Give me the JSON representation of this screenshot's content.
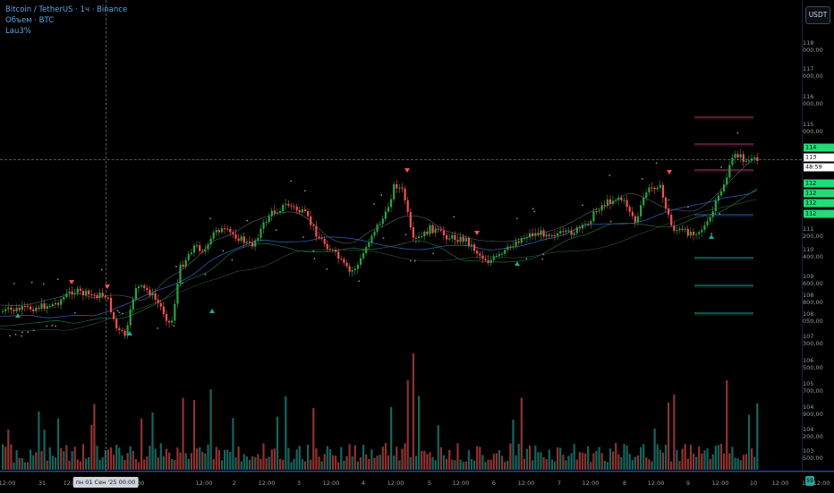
{
  "legend": {
    "symbol": "Bitcoin / TetherUS · 1ч · Binance",
    "volume": "Объем · BTC",
    "indicator": "Lau3%"
  },
  "currency_button": "USDT",
  "corner_badge": "59",
  "colors": {
    "up": "#26a69a",
    "up_candle": "#2ea043",
    "down": "#ef5350",
    "tag_green": "#22dd77",
    "level_pink": "#b03a66",
    "level_teal": "#2a9d8f",
    "ma_blue": "#2a5caa"
  },
  "price_axis": {
    "ticks": [
      "118 000,00",
      "117 000,00",
      "116 000,00",
      "115 000,00",
      "111 200,00",
      "110 400,00",
      "109 600,00",
      "108 800,00",
      "108 050,00",
      "107 300,00",
      "106 500,00",
      "105 700,00",
      "104 900,00",
      "104 200,00",
      "103 500,00"
    ],
    "tags": [
      {
        "text": "114 170,87",
        "kind": "green"
      },
      {
        "text": "113 779,43",
        "kind": "white"
      },
      {
        "text": "48:59",
        "kind": "white"
      },
      {
        "text": "112 926,97",
        "kind": "green"
      },
      {
        "text": "112 646,90",
        "kind": "green"
      },
      {
        "text": "112 592,00",
        "kind": "green"
      },
      {
        "text": "112 193,91",
        "kind": "green"
      }
    ]
  },
  "time_axis": {
    "ticks": [
      "12:00",
      "31",
      "12:00",
      "12:00",
      "00:00",
      "12:00",
      "2",
      "12:00",
      "3",
      "12:00",
      "4",
      "12:00",
      "5",
      "12:00",
      "6",
      "12:00",
      "7",
      "12:00",
      "8",
      "12:00",
      "9",
      "12:00",
      "10",
      "12:00",
      "11",
      "12:00"
    ],
    "cursor_label": "пн 01 Сен '25   00:00"
  }
}
